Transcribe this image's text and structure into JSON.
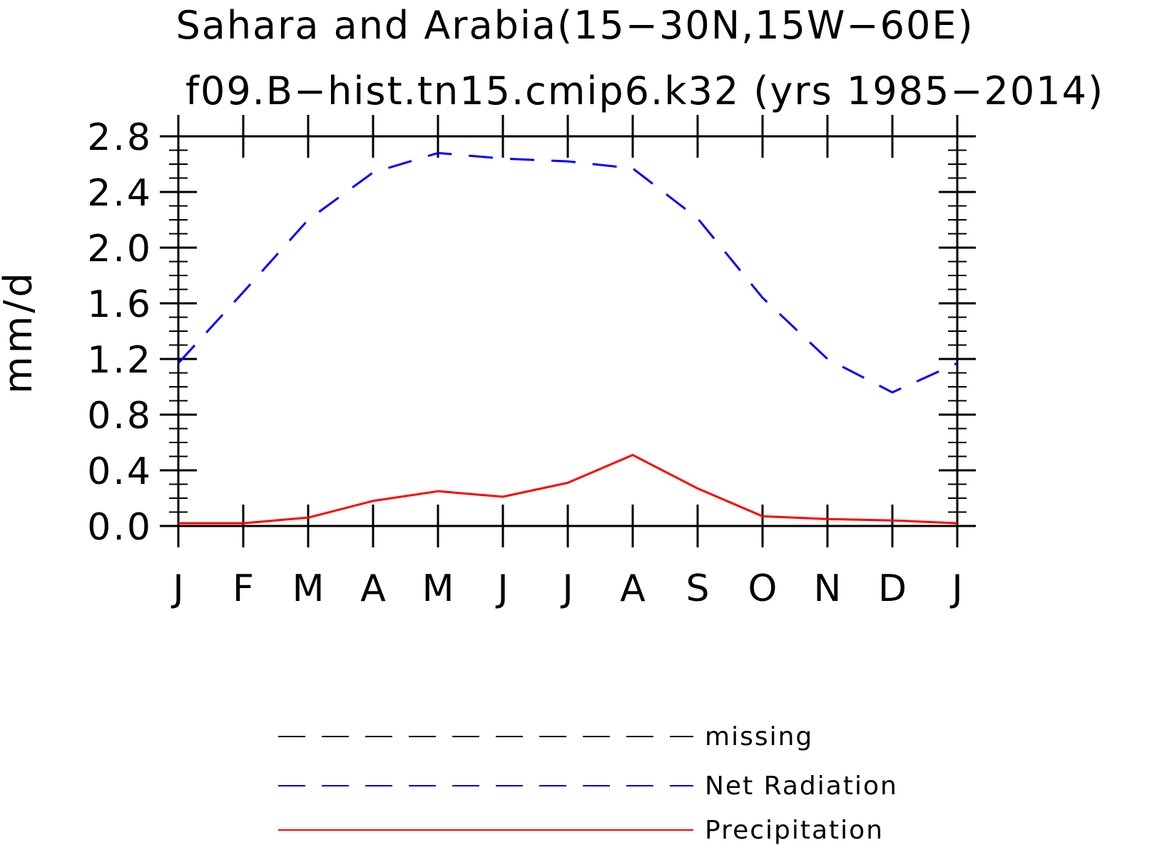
{
  "chart_data": {
    "type": "line",
    "title": "Sahara and Arabia(15−30N,15W−60E)",
    "subtitle": "f09.B−hist.tn15.cmip6.k32 (yrs 1985−2014)",
    "xlabel": "",
    "ylabel": "mm/d",
    "categories": [
      "J",
      "F",
      "M",
      "A",
      "M",
      "J",
      "J",
      "A",
      "S",
      "O",
      "N",
      "D",
      "J"
    ],
    "ylim": [
      0,
      2.8
    ],
    "yticks": [
      "0.0",
      "0.4",
      "0.8",
      "1.2",
      "1.6",
      "2.0",
      "2.4",
      "2.8"
    ],
    "grid": false,
    "legend_position": "bottom",
    "series": [
      {
        "name": "Net Radiation",
        "color": "#0000ff",
        "style": "dashed",
        "values": [
          1.17,
          1.68,
          2.2,
          2.54,
          2.68,
          2.64,
          2.62,
          2.57,
          2.21,
          1.64,
          1.2,
          0.96,
          1.17
        ]
      },
      {
        "name": "Precipitation",
        "color": "#ff0000",
        "style": "solid",
        "values": [
          0.02,
          0.02,
          0.06,
          0.18,
          0.25,
          0.21,
          0.31,
          0.51,
          0.27,
          0.07,
          0.05,
          0.04,
          0.02
        ]
      }
    ],
    "legend": [
      {
        "label": "missing",
        "color": "#000000",
        "style": "dashed"
      },
      {
        "label": "Net Radiation",
        "color": "#0000ff",
        "style": "dashed"
      },
      {
        "label": "Precipitation",
        "color": "#ff0000",
        "style": "solid"
      }
    ]
  }
}
